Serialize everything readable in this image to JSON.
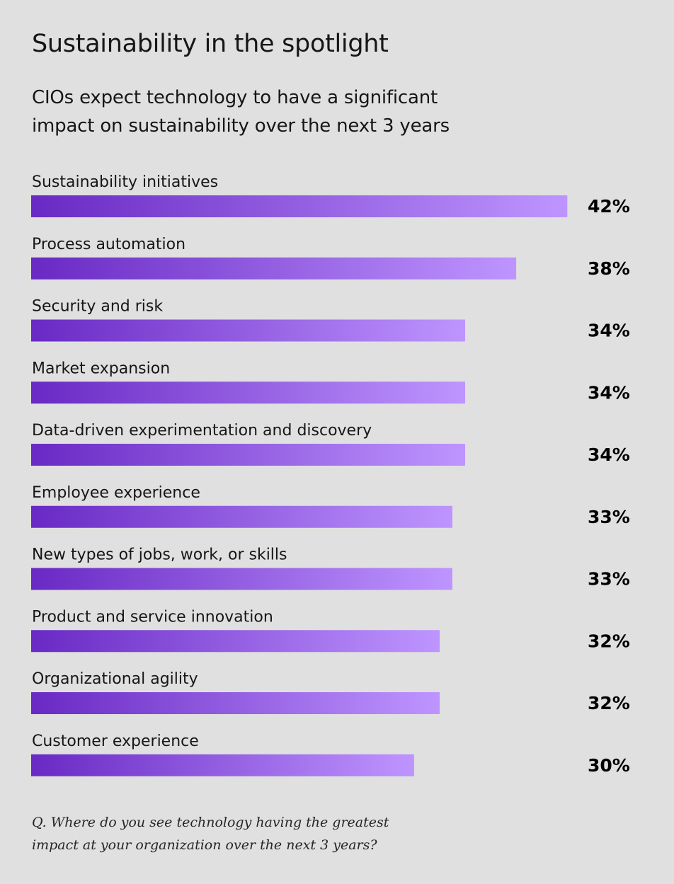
{
  "title": "Sustainability in the spotlight",
  "subtitle": "CIOs expect technology to have a significant impact on sustainability over the next 3 years",
  "footnote": "Q. Where do you see technology having the greatest impact at your organization over the next 3 years?",
  "colors": {
    "background": "#e0e0e0",
    "bar_start": "#6929c4",
    "bar_end": "#be95ff"
  },
  "chart_data": {
    "type": "bar",
    "orientation": "horizontal",
    "categories": [
      "Sustainability initiatives",
      "Process automation",
      "Security and risk",
      "Market expansion",
      "Data-driven experimentation and discovery",
      "Employee experience",
      "New types of jobs, work, or skills",
      "Product and service innovation",
      "Organizational agility",
      "Customer experience"
    ],
    "values": [
      42,
      38,
      34,
      34,
      34,
      33,
      33,
      32,
      32,
      30
    ],
    "value_labels": [
      "42%",
      "38%",
      "34%",
      "34%",
      "34%",
      "33%",
      "33%",
      "32%",
      "32%",
      "30%"
    ],
    "unit": "%",
    "grid": false,
    "legend": "none"
  }
}
